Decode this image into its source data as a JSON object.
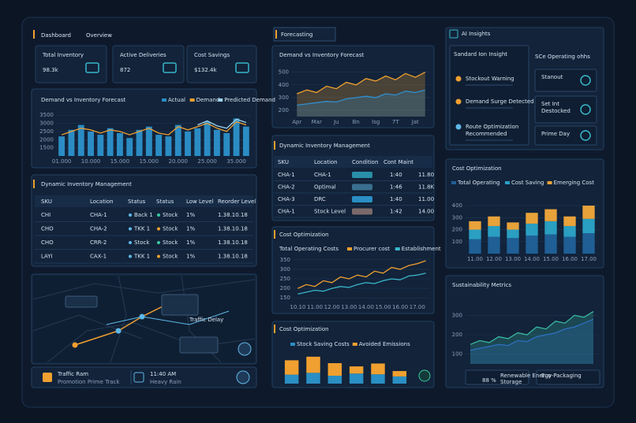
{
  "header": {
    "title": "Dashboard",
    "title_accent": "Overview"
  },
  "kpis": [
    {
      "label": "Total Inventory",
      "value": "98.3k"
    },
    {
      "label": "Active Deliveries",
      "value": "872"
    },
    {
      "label": "Cost Savings",
      "value": "$132.4k"
    }
  ],
  "forecasting": {
    "title": "Forecasting"
  },
  "inventory_left": {
    "title": "Dynamic Inventory Management",
    "columns": [
      "SKU",
      "Location",
      "Status",
      "Status",
      "Low Level",
      "Reorder Level"
    ],
    "rows": [
      [
        "CHI",
        "CHA-1",
        "Back 1",
        "Stock",
        "1%",
        "1.38.10.18"
      ],
      [
        "CHO",
        "CHA-2",
        "TKK 1",
        "Stock",
        "1%",
        "1.38.10.18"
      ],
      [
        "CHO",
        "CRR-2",
        "Stock",
        "Stock",
        "1%",
        "1.38.10.18"
      ],
      [
        "LAYI",
        "CAX-1",
        "TKK 1",
        "Stock",
        "1%",
        "1.38.10.18"
      ]
    ]
  },
  "inventory_mid": {
    "title": "Dynamic Inventory Management",
    "columns": [
      "SKU",
      "Location",
      "Condition",
      "Cont Maint"
    ],
    "rows": [
      [
        "CHA-1",
        "CHA-1",
        "1:40",
        "11.80"
      ],
      [
        "CHA-2",
        "Optimal",
        "1:46",
        "11.8K"
      ],
      [
        "CHA-3",
        "DRC",
        "1:40",
        "11.00"
      ],
      [
        "CHA-1",
        "Stock Level",
        "1:42",
        "14.00"
      ]
    ]
  },
  "map": {
    "label": "Traffic Delay",
    "status": [
      {
        "title": "Traffic Ram",
        "detail": "Promotion Prime Track"
      },
      {
        "title": "11:40 AM",
        "detail": "Heavy Rain"
      }
    ]
  },
  "ai_insights": {
    "title": "AI Insights",
    "left_title": "Sandard Ion Insight",
    "right_title": "SCe Operating ohhs",
    "items": [
      [
        "Stockout Warning"
      ],
      [
        "Demand Surge Detected"
      ],
      [
        "Route Optimization",
        "Recommended"
      ]
    ],
    "cards": [
      [
        "Stanout"
      ],
      [
        "Set Int",
        "Destocked"
      ],
      [
        "Prime Day"
      ]
    ]
  },
  "sustainability_footer": {
    "value": "88 %",
    "items": [
      [
        "Renewable Energy",
        "Storage"
      ],
      [
        "Eco-Packaging"
      ]
    ]
  },
  "chart_data": [
    {
      "type": "combo",
      "title": "Demand vs Inventory Forecast",
      "grid": true,
      "categories": [
        "01.000",
        null,
        null,
        "10.000",
        null,
        null,
        "15.000",
        null,
        null,
        "15.000",
        null,
        null,
        "20.000",
        null,
        null,
        "25.000",
        null,
        null,
        "35.000",
        null
      ],
      "ylim": [
        1000,
        3800
      ],
      "yticks": [
        1500,
        2000,
        2500,
        3000,
        3500
      ],
      "series": [
        {
          "name": "Actual",
          "kind": "bar",
          "color": "#2b8cc4",
          "values": [
            2200,
            2600,
            2900,
            2500,
            2300,
            2700,
            2400,
            2100,
            2600,
            2800,
            2300,
            2200,
            2900,
            2500,
            2700,
            3100,
            2600,
            2400,
            3300,
            2800
          ]
        },
        {
          "name": "Demand",
          "kind": "line",
          "color": "#f0a030",
          "values": [
            2300,
            2500,
            2700,
            2600,
            2400,
            2600,
            2500,
            2300,
            2500,
            2700,
            2400,
            2300,
            2800,
            2600,
            2800,
            3000,
            2700,
            2500,
            3100,
            2900
          ]
        },
        {
          "name": "Predicted Demand",
          "kind": "line",
          "color": "#9fd3f0",
          "values": [
            null,
            null,
            null,
            null,
            null,
            null,
            null,
            null,
            null,
            null,
            null,
            null,
            null,
            null,
            2900,
            3150,
            2850,
            2700,
            3250,
            3050
          ]
        }
      ]
    },
    {
      "type": "area",
      "title": "Demand vs Inventory Forecast",
      "grid": true,
      "categories": [
        "Apr",
        null,
        "Mar",
        null,
        "Ju",
        null,
        "Bn",
        null,
        "Isg",
        null,
        "7T",
        null,
        "Jat",
        null
      ],
      "ylim": [
        150,
        560
      ],
      "yticks": [
        200,
        300,
        400,
        500
      ],
      "series": [
        {
          "color": "#f0a030",
          "values": [
            330,
            360,
            340,
            390,
            370,
            420,
            400,
            450,
            430,
            470,
            440,
            490,
            460,
            500
          ]
        },
        {
          "color": "#2e8fd0",
          "values": [
            240,
            250,
            260,
            270,
            265,
            290,
            300,
            310,
            300,
            330,
            320,
            350,
            340,
            360
          ]
        }
      ]
    },
    {
      "type": "line",
      "title": "Cost Optimization",
      "subtitle": "Total Operating Costs",
      "grid": true,
      "categories": [
        "10.10",
        null,
        "11.00",
        null,
        "12.00",
        null,
        "13.00",
        null,
        "14.00",
        null,
        "15.00",
        null,
        "16.00",
        null,
        "17.00",
        null
      ],
      "ylim": [
        130,
        370
      ],
      "yticks": [
        150,
        200,
        250,
        300,
        350
      ],
      "series": [
        {
          "name": "Procurer cost",
          "color": "#f0a030",
          "values": [
            200,
            220,
            210,
            240,
            230,
            260,
            250,
            270,
            260,
            290,
            280,
            310,
            300,
            320,
            330,
            345
          ]
        },
        {
          "name": "Establishment",
          "color": "#38b7c9",
          "values": [
            170,
            180,
            190,
            185,
            200,
            210,
            205,
            220,
            230,
            225,
            240,
            250,
            245,
            265,
            270,
            280
          ]
        }
      ]
    },
    {
      "type": "stacked",
      "title": "Cost Optimization",
      "grid": false,
      "ylim": [
        0,
        90
      ],
      "series": [
        {
          "name": "Stock Saving Costs",
          "color": "#2a8fc4",
          "values": [
            25,
            30,
            22,
            28,
            26,
            20
          ]
        },
        {
          "name": "Avoided Emissions",
          "color": "#f0a030",
          "values": [
            40,
            45,
            35,
            20,
            30,
            15
          ]
        }
      ]
    },
    {
      "type": "stacked",
      "title": "Cost Optimization",
      "grid": true,
      "categories": [
        "11.00",
        "12.00",
        "13.00",
        "14.00",
        "15.00",
        "16.00",
        "17.00"
      ],
      "ylim": [
        0,
        420
      ],
      "yticks": [
        100,
        200,
        300,
        400
      ],
      "series": [
        {
          "name": "Total Operating",
          "color": "#1f5f95",
          "values": [
            120,
            140,
            130,
            150,
            160,
            140,
            170
          ]
        },
        {
          "name": "Cost Saving",
          "color": "#2a9fc2",
          "values": [
            80,
            90,
            70,
            100,
            110,
            90,
            120
          ]
        },
        {
          "name": "Emerging Cost",
          "color": "#e8a23a",
          "values": [
            70,
            80,
            60,
            90,
            100,
            80,
            110
          ]
        }
      ]
    },
    {
      "type": "area",
      "title": "Sustainability Metrics",
      "grid": true,
      "ylim": [
        50,
        350
      ],
      "yticks": [
        100,
        200,
        300
      ],
      "series": [
        {
          "color": "#38b7a0",
          "values": [
            150,
            170,
            160,
            190,
            180,
            210,
            200,
            240,
            230,
            270,
            260,
            300,
            290,
            320
          ]
        },
        {
          "color": "#2e6fc0",
          "values": [
            120,
            130,
            140,
            150,
            145,
            170,
            165,
            190,
            200,
            210,
            230,
            240,
            260,
            280
          ]
        }
      ]
    }
  ]
}
